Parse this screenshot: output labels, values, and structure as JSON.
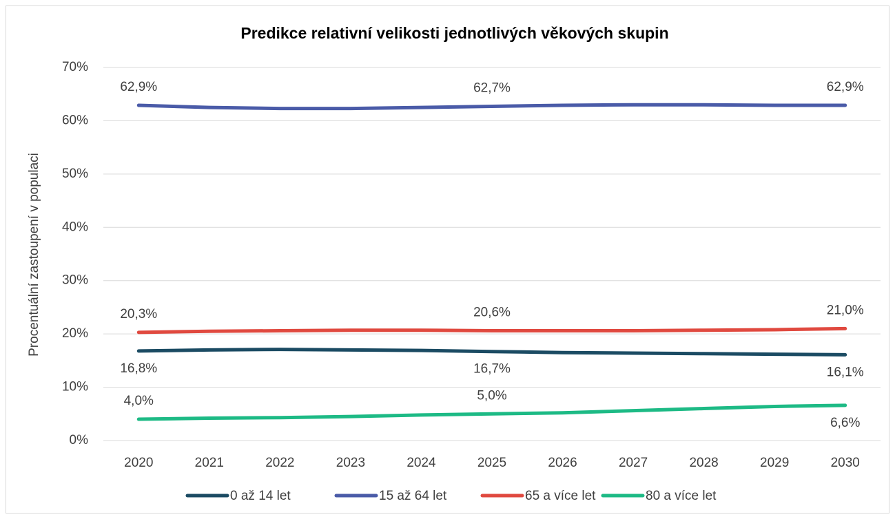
{
  "chart_data": {
    "type": "line",
    "title": "Predikce relativní velikosti jednotlivých věkových skupin",
    "y_label": "Procentuální zastoupení v populaci",
    "categories": [
      "2020",
      "2021",
      "2022",
      "2023",
      "2024",
      "2025",
      "2026",
      "2027",
      "2028",
      "2029",
      "2030"
    ],
    "ylim": [
      0,
      70
    ],
    "yticks": [
      {
        "value": 0,
        "label": "0%"
      },
      {
        "value": 10,
        "label": "10%"
      },
      {
        "value": 20,
        "label": "20%"
      },
      {
        "value": 30,
        "label": "30%"
      },
      {
        "value": 40,
        "label": "40%"
      },
      {
        "value": 50,
        "label": "50%"
      },
      {
        "value": 60,
        "label": "60%"
      },
      {
        "value": 70,
        "label": "70%"
      }
    ],
    "grid": true,
    "legend": "bottom",
    "series": [
      {
        "name": "0 až 14 let",
        "color": "#1b4b63",
        "values": [
          16.8,
          17.0,
          17.1,
          17.0,
          16.9,
          16.7,
          16.5,
          16.4,
          16.3,
          16.2,
          16.1
        ],
        "value_labels": [
          "16,8%",
          null,
          null,
          null,
          null,
          "16,7%",
          null,
          null,
          null,
          null,
          "16,1%"
        ]
      },
      {
        "name": "15 až 64 let",
        "color": "#4a5ba8",
        "values": [
          62.9,
          62.5,
          62.3,
          62.3,
          62.5,
          62.7,
          62.9,
          63.0,
          63.0,
          62.9,
          62.9
        ],
        "value_labels": [
          "62,9%",
          null,
          null,
          null,
          null,
          "62,7%",
          null,
          null,
          null,
          null,
          "62,9%"
        ]
      },
      {
        "name": "65 a více let",
        "color": "#e0493f",
        "values": [
          20.3,
          20.5,
          20.6,
          20.7,
          20.7,
          20.6,
          20.6,
          20.6,
          20.7,
          20.8,
          21.0
        ],
        "value_labels": [
          "20,3%",
          null,
          null,
          null,
          null,
          "20,6%",
          null,
          null,
          null,
          null,
          "21,0%"
        ]
      },
      {
        "name": "80 a více let",
        "color": "#1dba85",
        "values": [
          4.0,
          4.2,
          4.3,
          4.5,
          4.8,
          5.0,
          5.2,
          5.6,
          6.0,
          6.4,
          6.6
        ],
        "value_labels": [
          "4,0%",
          null,
          null,
          null,
          null,
          "5,0%",
          null,
          null,
          null,
          null,
          "6,6%"
        ]
      }
    ]
  }
}
